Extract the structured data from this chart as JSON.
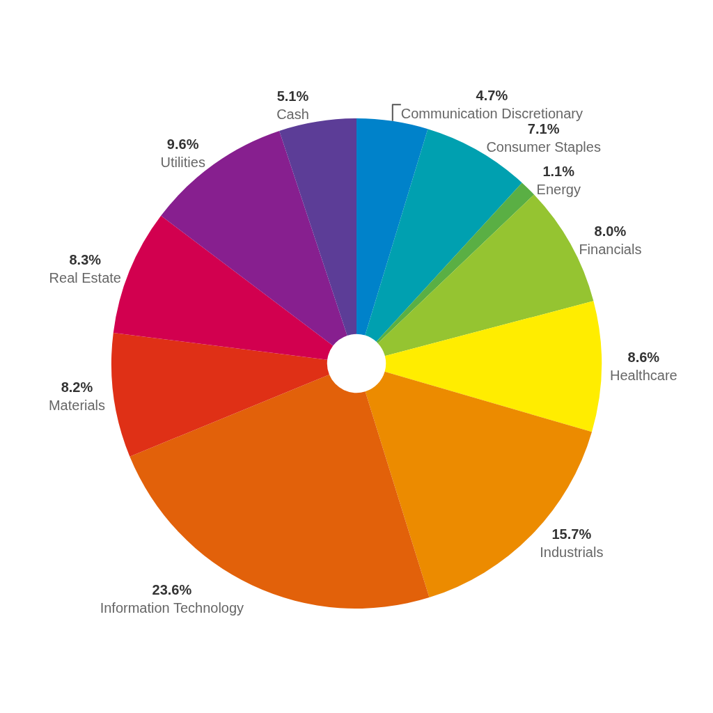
{
  "chart_data": {
    "type": "pie",
    "categories": [
      "Communication Discretionary",
      "Consumer Staples",
      "Energy",
      "Financials",
      "Healthcare",
      "Industrials",
      "Information Technology",
      "Materials",
      "Real Estate",
      "Utilities",
      "Cash"
    ],
    "values": [
      4.7,
      7.1,
      1.1,
      8.0,
      8.6,
      15.7,
      23.6,
      8.2,
      8.3,
      9.6,
      5.1
    ],
    "value_labels": [
      "4.7%",
      "7.1%",
      "1.1%",
      "8.0%",
      "8.6%",
      "15.7%",
      "23.6%",
      "8.2%",
      "8.3%",
      "9.6%",
      "5.1%"
    ],
    "colors": [
      "#0082ca",
      "#00a0b0",
      "#5aaf44",
      "#95c431",
      "#ffed00",
      "#ec8b00",
      "#e2610a",
      "#df3016",
      "#d2004f",
      "#871f8f",
      "#5c3d97"
    ],
    "legend": false
  }
}
